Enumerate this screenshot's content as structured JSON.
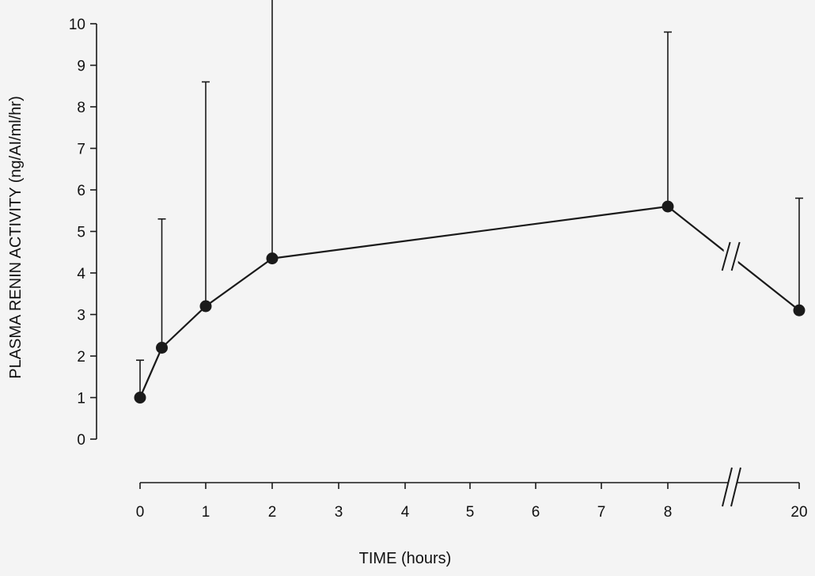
{
  "chart_data": {
    "type": "line",
    "xlabel": "TIME (hours)",
    "ylabel": "PLASMA RENIN ACTIVITY (ng/AI/ml/hr)",
    "ylim": [
      0,
      10
    ],
    "yticks": [
      0,
      1,
      2,
      3,
      4,
      5,
      6,
      7,
      8,
      9,
      10
    ],
    "xticks": [
      "0",
      "1",
      "2",
      "3",
      "4",
      "5",
      "6",
      "7",
      "8",
      "20"
    ],
    "axis_break": "between 8 and 20",
    "series": [
      {
        "x": [
          0,
          0.33,
          1,
          2,
          8,
          20
        ],
        "y": [
          1.0,
          2.2,
          3.2,
          4.35,
          5.6,
          3.1
        ],
        "error_upper": [
          1.9,
          5.3,
          8.6,
          10.7,
          9.8,
          5.8
        ],
        "marker": "filled-circle",
        "color": "#1a1a1a"
      }
    ],
    "grid": false,
    "legend": "none"
  }
}
